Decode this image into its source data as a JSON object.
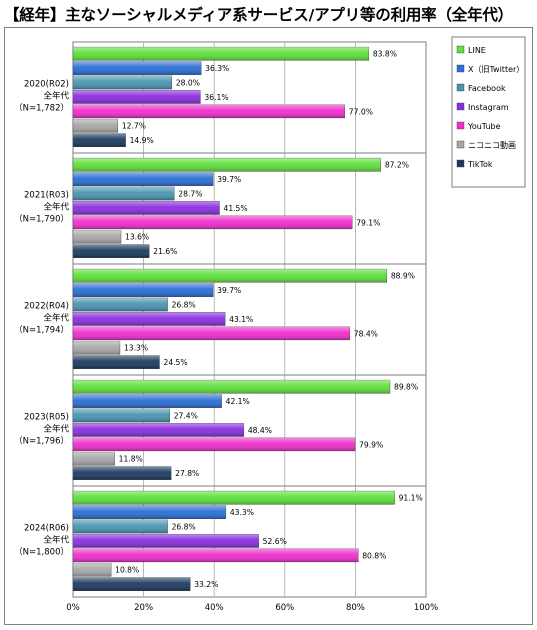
{
  "title": "【経年】主なソーシャルメディア系サービス/アプリ等の利用率（全年代）",
  "chart_data": {
    "type": "bar",
    "orientation": "horizontal",
    "title": "【経年】主なソーシャルメディア系サービス/アプリ等の利用率（全年代）",
    "xlim": [
      0,
      100
    ],
    "x_ticks": [
      "0%",
      "20%",
      "40%",
      "60%",
      "80%",
      "100%"
    ],
    "grid": true,
    "legend_position": "right",
    "groups": [
      {
        "lines": [
          "2020(R02)",
          "全年代",
          "（N=1,782）"
        ]
      },
      {
        "lines": [
          "2021(R03)",
          "全年代",
          "（N=1,790）"
        ]
      },
      {
        "lines": [
          "2022(R04)",
          "全年代",
          "（N=1,794）"
        ]
      },
      {
        "lines": [
          "2023(R05)",
          "全年代",
          "（N=1,796）"
        ]
      },
      {
        "lines": [
          "2024(R06)",
          "全年代",
          "（N=1,800）"
        ]
      }
    ],
    "series": [
      {
        "name": "LINE",
        "color": "#5ee03b",
        "values": [
          83.8,
          87.2,
          88.9,
          89.8,
          91.1
        ],
        "labels": [
          "83.8%",
          "87.2%",
          "88.9%",
          "89.8%",
          "91.1%"
        ]
      },
      {
        "name": "X（旧Twitter）",
        "color": "#2a6ed6",
        "values": [
          36.3,
          39.7,
          39.7,
          42.1,
          43.3
        ],
        "labels": [
          "36.3%",
          "39.7%",
          "39.7%",
          "42.1%",
          "43.3%"
        ]
      },
      {
        "name": "Facebook",
        "color": "#4a94b0",
        "values": [
          28.0,
          28.7,
          26.8,
          27.4,
          26.8
        ],
        "labels": [
          "28.0%",
          "28.7%",
          "26.8%",
          "27.4%",
          "26.8%"
        ]
      },
      {
        "name": "Instagram",
        "color": "#8a2ee0",
        "values": [
          36.1,
          41.5,
          43.1,
          48.4,
          52.6
        ],
        "labels": [
          "36.1%",
          "41.5%",
          "43.1%",
          "48.4%",
          "52.6%"
        ]
      },
      {
        "name": "YouTube",
        "color": "#f02ecd",
        "values": [
          77.0,
          79.1,
          78.4,
          79.9,
          80.8
        ],
        "labels": [
          "77.0%",
          "79.1%",
          "78.4%",
          "79.9%",
          "80.8%"
        ]
      },
      {
        "name": "ニコニコ動画",
        "color": "#a8a8a8",
        "values": [
          12.7,
          13.6,
          13.3,
          11.8,
          10.8
        ],
        "labels": [
          "12.7%",
          "13.6%",
          "13.3%",
          "11.8%",
          "10.8%"
        ]
      },
      {
        "name": "TikTok",
        "color": "#1c3a5e",
        "values": [
          14.9,
          21.6,
          24.5,
          27.8,
          33.2
        ],
        "labels": [
          "14.9%",
          "21.6%",
          "24.5%",
          "27.8%",
          "33.2%"
        ]
      }
    ]
  }
}
